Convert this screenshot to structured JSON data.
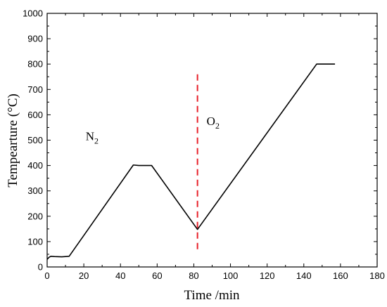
{
  "chart_data": {
    "type": "line",
    "xlabel": "Time /min",
    "ylabel": "Tempearture (°C)",
    "xlim": [
      0,
      180
    ],
    "ylim": [
      0,
      1000
    ],
    "xticks": [
      "0",
      "20",
      "40",
      "60",
      "80",
      "100",
      "120",
      "140",
      "160",
      "180"
    ],
    "yticks": [
      "0",
      "100",
      "200",
      "300",
      "400",
      "500",
      "600",
      "700",
      "800",
      "900",
      "1000"
    ],
    "grid": false,
    "series": [
      {
        "color": "#000000",
        "x": [
          0,
          1,
          2,
          4,
          8,
          12,
          47,
          50,
          57,
          82,
          147,
          150,
          157
        ],
        "y": [
          30,
          38,
          42,
          41,
          40,
          42,
          402,
          400,
          400,
          148,
          800,
          800,
          800
        ]
      }
    ],
    "divider": {
      "x": 82,
      "y_range": [
        70,
        765
      ],
      "color": "#e8202a",
      "style": "dashed"
    },
    "annotations": [
      {
        "text": "N",
        "sub": "2",
        "x": 21,
        "y": 500
      },
      {
        "text": "O",
        "sub": "2",
        "x": 87,
        "y": 560
      }
    ]
  }
}
